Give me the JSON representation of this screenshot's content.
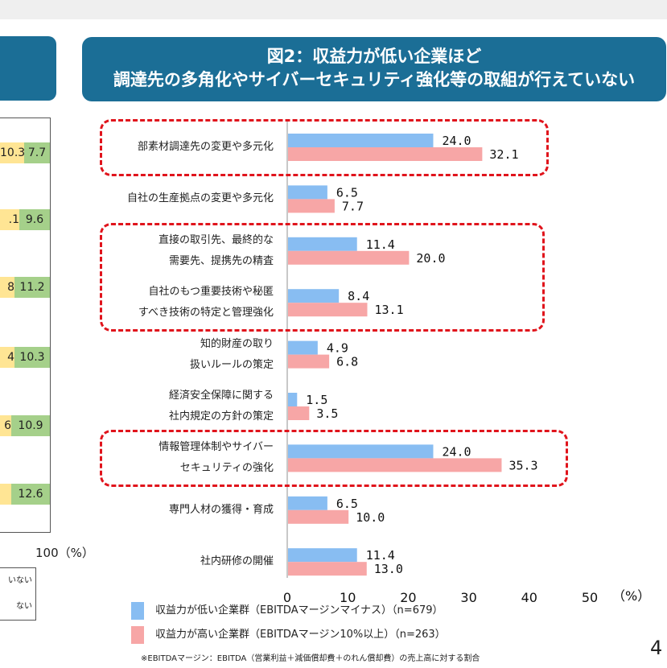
{
  "header": {
    "title_line1": "図2：収益力が低い企業ほど",
    "title_line2": "調達先の多角化やサイバーセキュリティ強化等の取組が行えていない"
  },
  "left_panel": {
    "cells": [
      "10.3",
      "7.7",
      ".1",
      "9.6",
      "8",
      "11.2",
      "4",
      "10.3",
      "6",
      "10.9",
      "12.6"
    ],
    "axis_label": "100（%）",
    "legend_lines": [
      "いない",
      "ない"
    ]
  },
  "page_number": "4",
  "chart_data": {
    "type": "bar",
    "orientation": "horizontal",
    "categories": [
      "部素材調達先の変更や多元化",
      "自社の生産拠点の変更や多元化",
      "直接の取引先、最終的な\n需要先、提携先の精査",
      "自社のもつ重要技術や秘匿\nすべき技術の特定と管理強化",
      "知的財産の取り\n扱いルールの策定",
      "経済安全保障に関する\n社内規定の方針の策定",
      "情報管理体制やサイバー\nセキュリティの強化",
      "専門人材の獲得・育成",
      "社内研修の開催"
    ],
    "series": [
      {
        "name": "収益力が低い企業群（EBITDAマージンマイナス）（n=679）",
        "color": "#88bdf2",
        "values": [
          24.0,
          6.5,
          11.4,
          8.4,
          4.9,
          1.5,
          24.0,
          6.5,
          11.4
        ]
      },
      {
        "name": "収益力が高い企業群（EBITDAマージン10%以上）（n=263）",
        "color": "#f7a6a6",
        "values": [
          32.1,
          7.7,
          20.0,
          13.1,
          6.8,
          3.5,
          35.3,
          10.0,
          13.0
        ]
      }
    ],
    "value_labels": [
      [
        "24.0",
        "6.5",
        "11.4",
        "8.4",
        "4.9",
        "1.5",
        "24.0",
        "6.5",
        "11.4"
      ],
      [
        "32.1",
        "7.7",
        "20.0",
        "13.1",
        "6.8",
        "3.5",
        "35.3",
        "10.0",
        "13.0"
      ]
    ],
    "xlim": [
      0,
      50
    ],
    "xticks": [
      "0",
      "10",
      "20",
      "30",
      "40",
      "50"
    ],
    "xunit": "（%）",
    "highlighted_groups": [
      [
        0
      ],
      [
        2,
        3
      ],
      [
        6
      ]
    ],
    "highlight_color": "#e0141c",
    "footnote": "※EBITDAマージン：EBITDA（営業利益＋減価償却費＋のれん償却費）の売上高に対する割合"
  }
}
